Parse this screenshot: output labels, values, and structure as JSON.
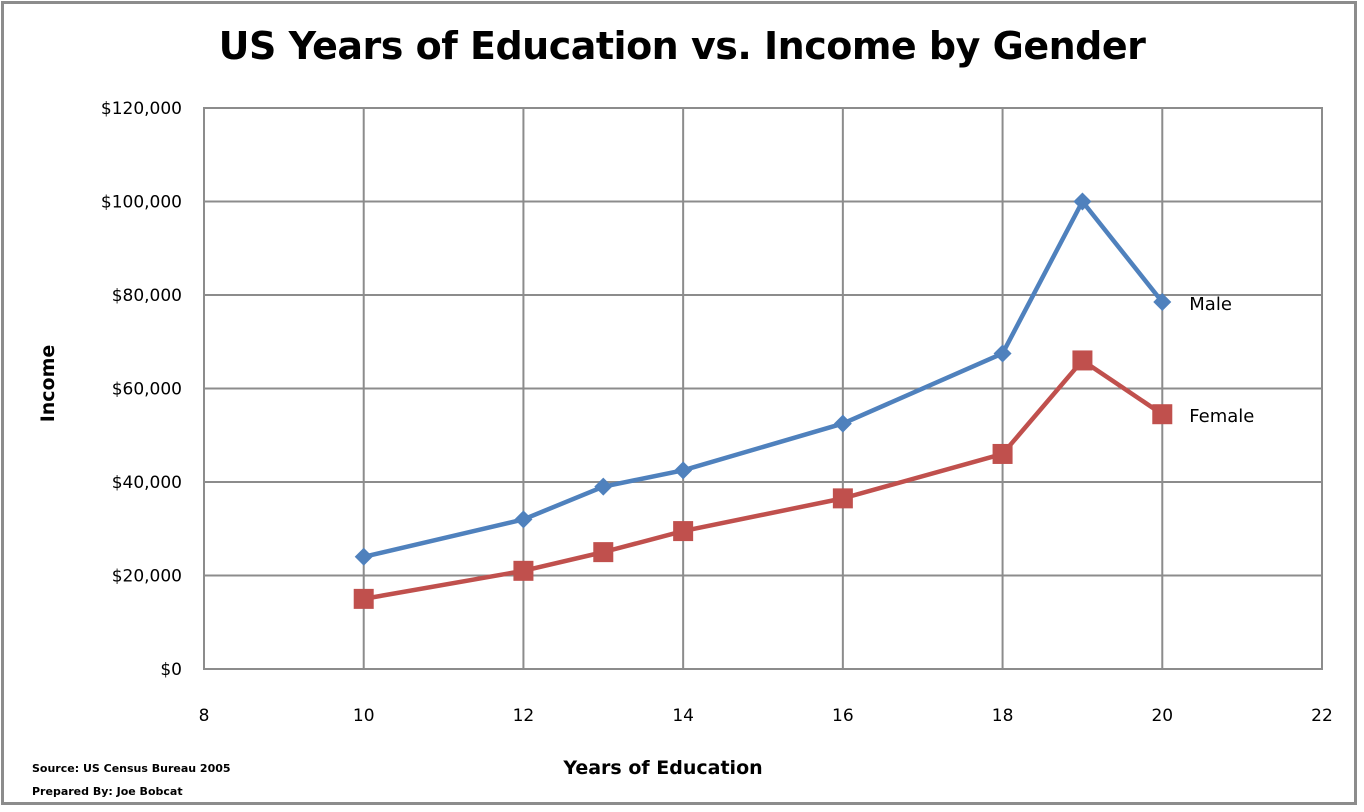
{
  "chart_data": {
    "type": "line",
    "title": "US Years of Education vs. Income by Gender",
    "xlabel": "Years of Education",
    "ylabel": "Income",
    "xlim": [
      8,
      22
    ],
    "ylim": [
      0,
      120000
    ],
    "x_ticks": [
      "8",
      "10",
      "12",
      "14",
      "16",
      "18",
      "20",
      "22"
    ],
    "y_ticks": [
      "$0",
      "$20,000",
      "$40,000",
      "$60,000",
      "$80,000",
      "$100,000",
      "$120,000"
    ],
    "x_tick_values": [
      8,
      10,
      12,
      14,
      16,
      18,
      20,
      22
    ],
    "y_tick_values": [
      0,
      20000,
      40000,
      60000,
      80000,
      100000,
      120000
    ],
    "grid": true,
    "legend": "none",
    "series": [
      {
        "name": "Male",
        "color": "#4f81bd",
        "marker": "diamond",
        "x": [
          10,
          12,
          13,
          14,
          16,
          18,
          19,
          20
        ],
        "y": [
          24000,
          32000,
          39000,
          42500,
          52500,
          67500,
          100000,
          78500
        ]
      },
      {
        "name": "Female",
        "color": "#c0504d",
        "marker": "square",
        "x": [
          10,
          12,
          13,
          14,
          16,
          18,
          19,
          20
        ],
        "y": [
          15000,
          21000,
          25000,
          29500,
          36500,
          46000,
          66000,
          54500
        ]
      }
    ]
  },
  "footnotes": {
    "source": "Source: US Census Bureau 2005",
    "prepared": "Prepared By: Joe Bobcat"
  }
}
